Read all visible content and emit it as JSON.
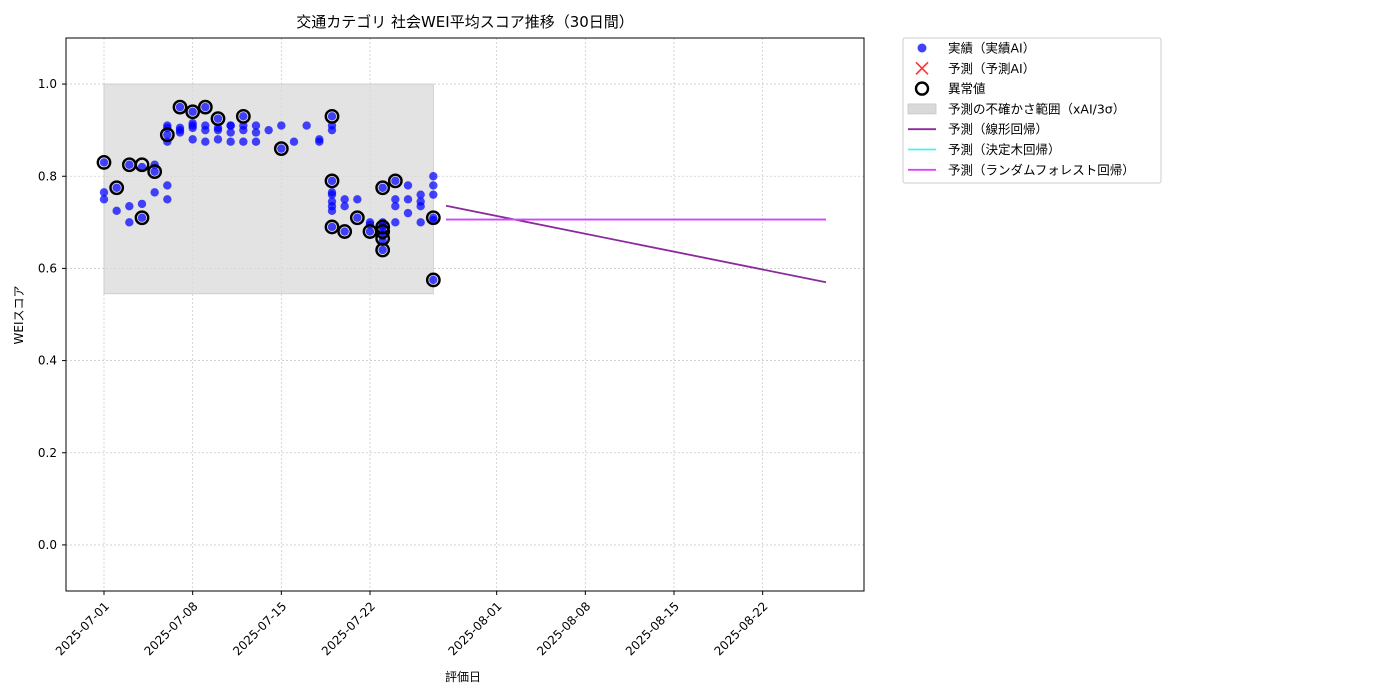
{
  "chart_data": {
    "type": "scatter",
    "title": "交通カテゴリ 社会WEI平均スコア推移（30日間）",
    "xlabel": "評価日",
    "ylabel": "WEIスコア",
    "x_ticks": [
      "2025-07-01",
      "2025-07-08",
      "2025-07-15",
      "2025-07-22",
      "2025-08-01",
      "2025-08-08",
      "2025-08-15",
      "2025-08-22"
    ],
    "y_ticks": [
      "0.0",
      "0.2",
      "0.4",
      "0.6",
      "0.8",
      "1.0"
    ],
    "xlim": [
      "2025-06-28",
      "2025-08-30"
    ],
    "ylim": [
      -0.1,
      1.1
    ],
    "grid": true,
    "legend_position": "outside-top-right",
    "legend": [
      {
        "key": "actual",
        "label": "実績（実績AI）",
        "marker": "dot",
        "color": "#0000ff"
      },
      {
        "key": "predicted",
        "label": "予測（予測AI）",
        "marker": "x",
        "color": "#ff3333"
      },
      {
        "key": "anomaly",
        "label": "異常値",
        "marker": "ring",
        "color": "#000000"
      },
      {
        "key": "band",
        "label": "予測の不確かさ範囲（xAI/3σ）",
        "marker": "patch",
        "color": "#d9d9d9"
      },
      {
        "key": "linear",
        "label": "予測（線形回帰）",
        "marker": "line",
        "color": "#8b2a9b"
      },
      {
        "key": "tree",
        "label": "予測（決定木回帰）",
        "marker": "line",
        "color": "#4cf2f2"
      },
      {
        "key": "forest",
        "label": "予測（ランダムフォレスト回帰）",
        "marker": "line",
        "color": "#e040fb"
      }
    ],
    "uncertainty_band": {
      "x": [
        "2025-07-01",
        "2025-07-27"
      ],
      "y": [
        0.545,
        1.0
      ]
    },
    "series": [
      {
        "key": "actual",
        "points": [
          [
            "2025-07-01",
            0.765
          ],
          [
            "2025-07-01",
            0.75
          ],
          [
            "2025-07-01",
            0.83
          ],
          [
            "2025-07-02",
            0.725
          ],
          [
            "2025-07-02",
            0.775
          ],
          [
            "2025-07-03",
            0.735
          ],
          [
            "2025-07-03",
            0.7
          ],
          [
            "2025-07-03",
            0.825
          ],
          [
            "2025-07-04",
            0.74
          ],
          [
            "2025-07-04",
            0.71
          ],
          [
            "2025-07-04",
            0.82
          ],
          [
            "2025-07-05",
            0.825
          ],
          [
            "2025-07-05",
            0.81
          ],
          [
            "2025-07-05",
            0.765
          ],
          [
            "2025-07-06",
            0.75
          ],
          [
            "2025-07-06",
            0.78
          ],
          [
            "2025-07-06",
            0.89
          ],
          [
            "2025-07-06",
            0.91
          ],
          [
            "2025-07-06",
            0.905
          ],
          [
            "2025-07-06",
            0.875
          ],
          [
            "2025-07-07",
            0.95
          ],
          [
            "2025-07-07",
            0.905
          ],
          [
            "2025-07-07",
            0.895
          ],
          [
            "2025-07-07",
            0.9
          ],
          [
            "2025-07-08",
            0.91
          ],
          [
            "2025-07-08",
            0.88
          ],
          [
            "2025-07-08",
            0.94
          ],
          [
            "2025-07-08",
            0.905
          ],
          [
            "2025-07-08",
            0.915
          ],
          [
            "2025-07-09",
            0.95
          ],
          [
            "2025-07-09",
            0.9
          ],
          [
            "2025-07-09",
            0.91
          ],
          [
            "2025-07-09",
            0.875
          ],
          [
            "2025-07-10",
            0.925
          ],
          [
            "2025-07-10",
            0.88
          ],
          [
            "2025-07-10",
            0.9
          ],
          [
            "2025-07-10",
            0.905
          ],
          [
            "2025-07-11",
            0.91
          ],
          [
            "2025-07-11",
            0.895
          ],
          [
            "2025-07-11",
            0.875
          ],
          [
            "2025-07-11",
            0.91
          ],
          [
            "2025-07-12",
            0.9
          ],
          [
            "2025-07-12",
            0.91
          ],
          [
            "2025-07-12",
            0.875
          ],
          [
            "2025-07-12",
            0.93
          ],
          [
            "2025-07-13",
            0.895
          ],
          [
            "2025-07-13",
            0.91
          ],
          [
            "2025-07-13",
            0.875
          ],
          [
            "2025-07-14",
            0.9
          ],
          [
            "2025-07-15",
            0.91
          ],
          [
            "2025-07-15",
            0.86
          ],
          [
            "2025-07-16",
            0.875
          ],
          [
            "2025-07-17",
            0.91
          ],
          [
            "2025-07-18",
            0.88
          ],
          [
            "2025-07-18",
            0.875
          ],
          [
            "2025-07-19",
            0.93
          ],
          [
            "2025-07-19",
            0.91
          ],
          [
            "2025-07-19",
            0.9
          ],
          [
            "2025-07-19",
            0.79
          ],
          [
            "2025-07-19",
            0.765
          ],
          [
            "2025-07-19",
            0.745
          ],
          [
            "2025-07-19",
            0.735
          ],
          [
            "2025-07-19",
            0.69
          ],
          [
            "2025-07-19",
            0.725
          ],
          [
            "2025-07-19",
            0.76
          ],
          [
            "2025-07-20",
            0.75
          ],
          [
            "2025-07-20",
            0.68
          ],
          [
            "2025-07-20",
            0.735
          ],
          [
            "2025-07-21",
            0.75
          ],
          [
            "2025-07-21",
            0.71
          ],
          [
            "2025-07-22",
            0.695
          ],
          [
            "2025-07-22",
            0.68
          ],
          [
            "2025-07-22",
            0.7
          ],
          [
            "2025-07-23",
            0.775
          ],
          [
            "2025-07-23",
            0.7
          ],
          [
            "2025-07-23",
            0.695
          ],
          [
            "2025-07-23",
            0.69
          ],
          [
            "2025-07-23",
            0.68
          ],
          [
            "2025-07-23",
            0.67
          ],
          [
            "2025-07-23",
            0.66
          ],
          [
            "2025-07-23",
            0.64
          ],
          [
            "2025-07-24",
            0.79
          ],
          [
            "2025-07-24",
            0.735
          ],
          [
            "2025-07-24",
            0.75
          ],
          [
            "2025-07-24",
            0.7
          ],
          [
            "2025-07-25",
            0.75
          ],
          [
            "2025-07-25",
            0.78
          ],
          [
            "2025-07-25",
            0.72
          ],
          [
            "2025-07-26",
            0.76
          ],
          [
            "2025-07-26",
            0.735
          ],
          [
            "2025-07-26",
            0.745
          ],
          [
            "2025-07-26",
            0.7
          ],
          [
            "2025-07-27",
            0.8
          ],
          [
            "2025-07-27",
            0.78
          ],
          [
            "2025-07-27",
            0.76
          ],
          [
            "2025-07-27",
            0.575
          ],
          [
            "2025-07-27",
            0.71
          ],
          [
            "2025-07-27",
            0.705
          ]
        ]
      },
      {
        "key": "anomaly",
        "points": [
          [
            "2025-07-01",
            0.83
          ],
          [
            "2025-07-02",
            0.775
          ],
          [
            "2025-07-03",
            0.825
          ],
          [
            "2025-07-04",
            0.71
          ],
          [
            "2025-07-04",
            0.825
          ],
          [
            "2025-07-05",
            0.81
          ],
          [
            "2025-07-06",
            0.89
          ],
          [
            "2025-07-07",
            0.95
          ],
          [
            "2025-07-08",
            0.94
          ],
          [
            "2025-07-09",
            0.95
          ],
          [
            "2025-07-10",
            0.925
          ],
          [
            "2025-07-12",
            0.93
          ],
          [
            "2025-07-15",
            0.86
          ],
          [
            "2025-07-19",
            0.93
          ],
          [
            "2025-07-19",
            0.79
          ],
          [
            "2025-07-19",
            0.69
          ],
          [
            "2025-07-20",
            0.68
          ],
          [
            "2025-07-21",
            0.71
          ],
          [
            "2025-07-22",
            0.68
          ],
          [
            "2025-07-23",
            0.775
          ],
          [
            "2025-07-23",
            0.69
          ],
          [
            "2025-07-23",
            0.68
          ],
          [
            "2025-07-23",
            0.665
          ],
          [
            "2025-07-23",
            0.64
          ],
          [
            "2025-07-24",
            0.79
          ],
          [
            "2025-07-27",
            0.575
          ],
          [
            "2025-07-27",
            0.71
          ]
        ]
      },
      {
        "key": "linear",
        "line": [
          [
            "2025-07-28",
            0.736
          ],
          [
            "2025-08-27",
            0.57
          ]
        ]
      },
      {
        "key": "tree",
        "line": [
          [
            "2025-07-28",
            0.706
          ],
          [
            "2025-08-27",
            0.706
          ]
        ]
      },
      {
        "key": "forest",
        "line": [
          [
            "2025-07-28",
            0.706
          ],
          [
            "2025-08-27",
            0.706
          ]
        ]
      }
    ]
  }
}
